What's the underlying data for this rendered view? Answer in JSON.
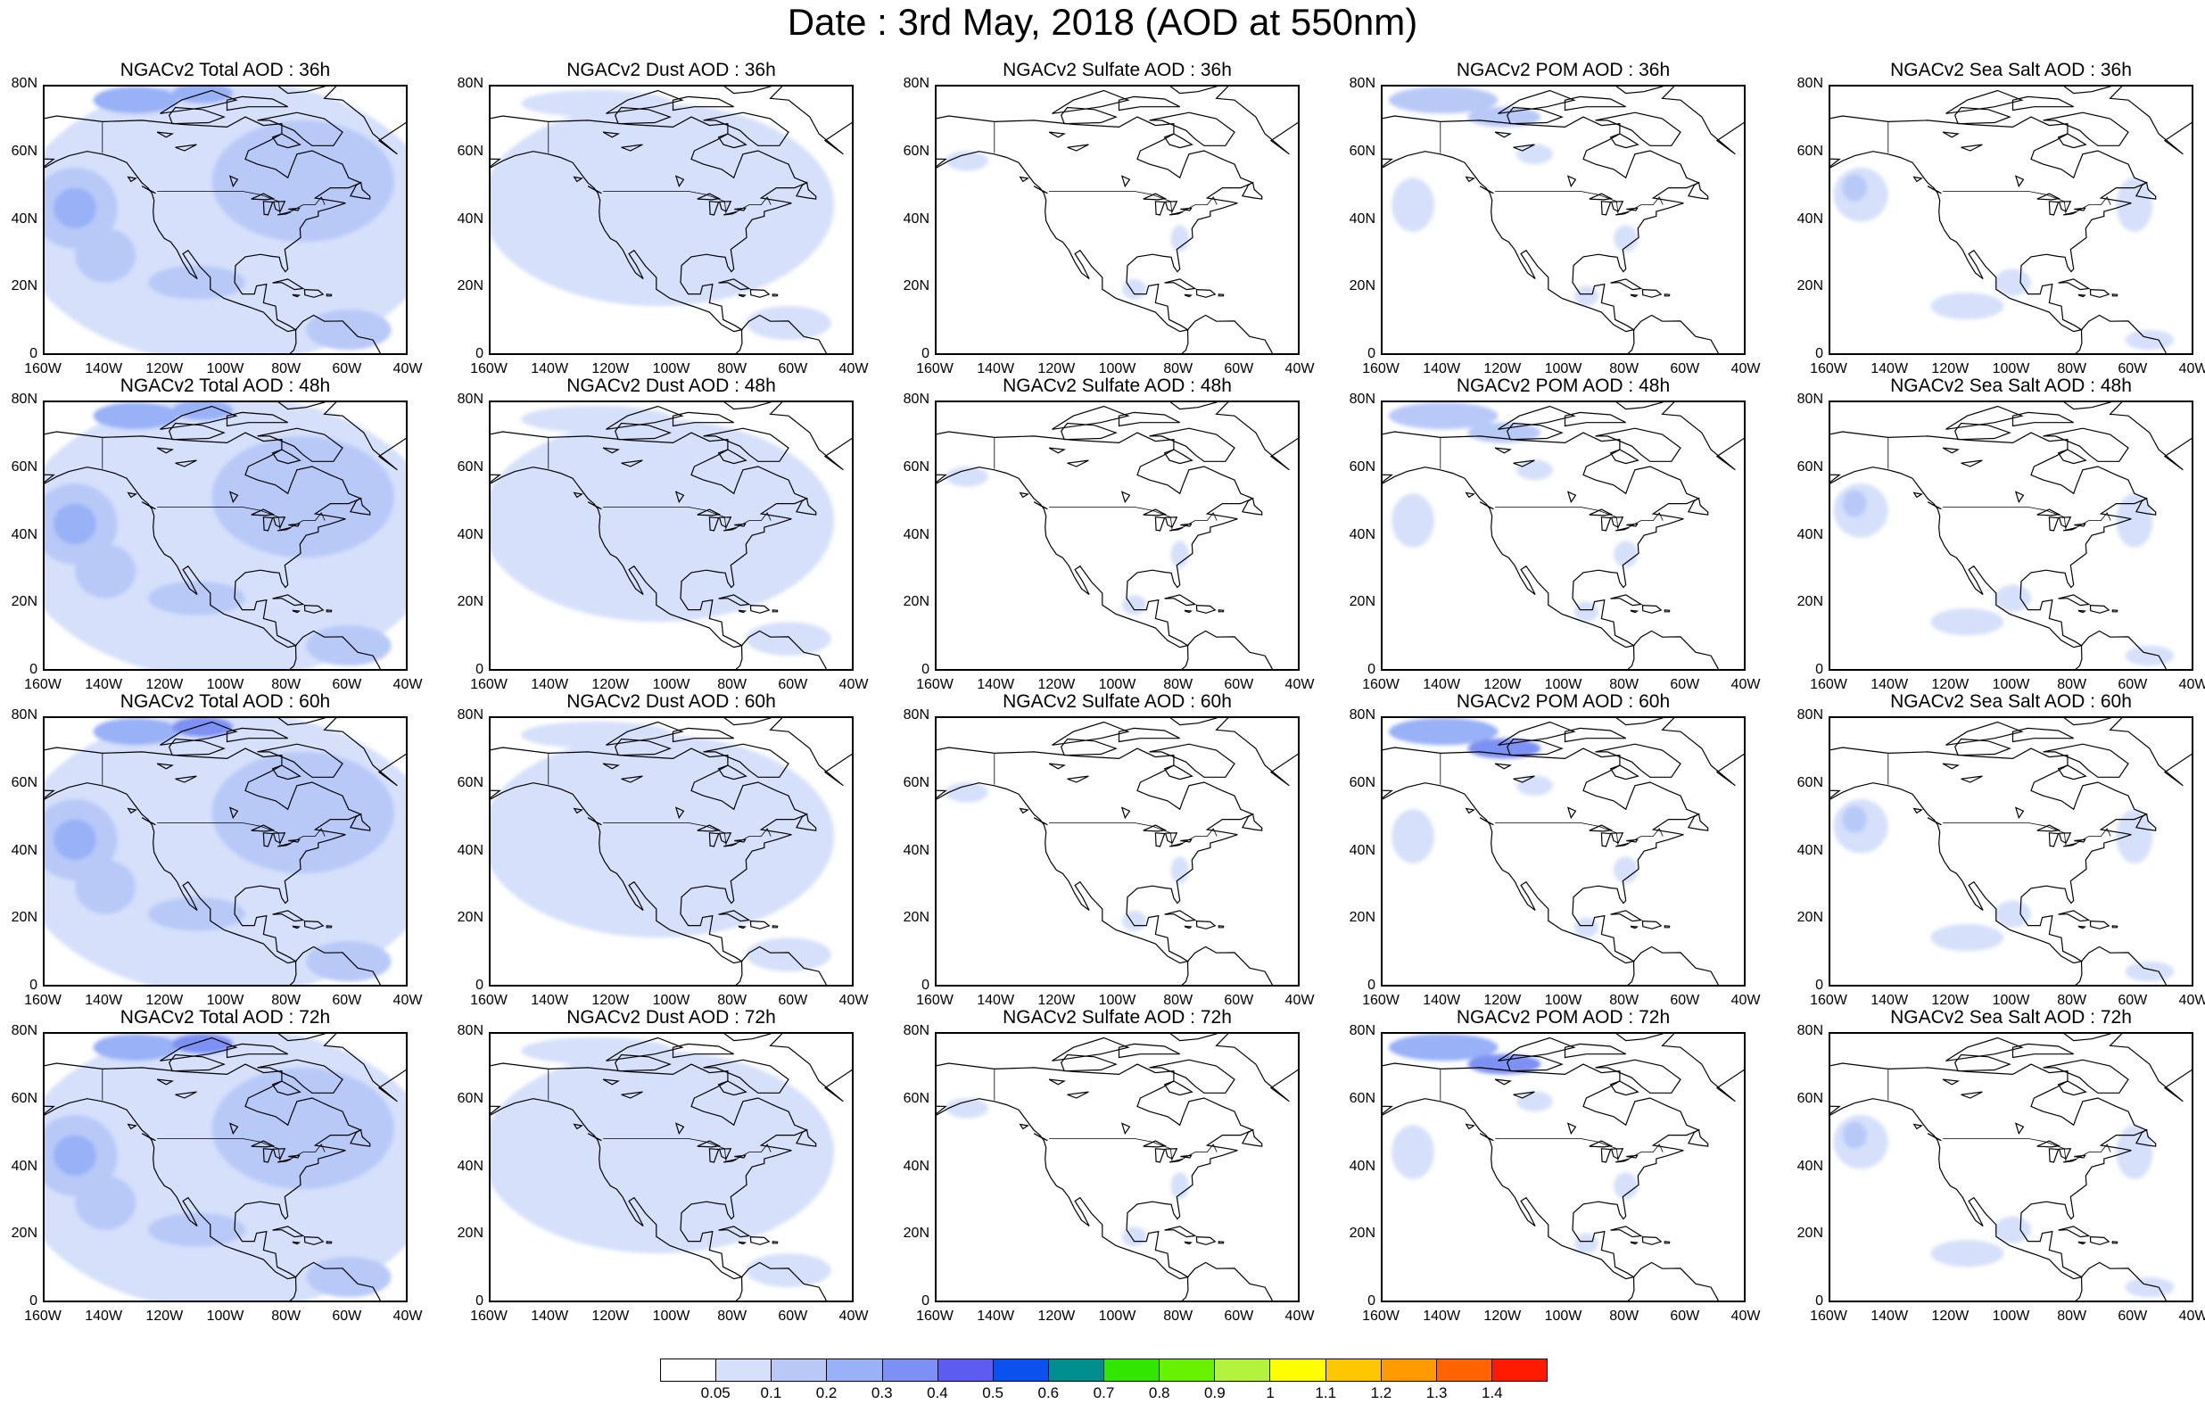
{
  "title": "Date : 3rd May, 2018 (AOD at 550nm)",
  "axes": {
    "lat_ticks": [
      "80N",
      "60N",
      "40N",
      "20N",
      "0"
    ],
    "lon_ticks": [
      "160W",
      "140W",
      "120W",
      "100W",
      "80W",
      "60W",
      "40W"
    ],
    "lon_range": [
      -160,
      -40
    ],
    "lat_range": [
      0,
      80
    ]
  },
  "panels": [
    [
      {
        "title": "NGACv2 Total AOD : 36h",
        "field": "total",
        "lead": 36
      },
      {
        "title": "NGACv2 Dust AOD : 36h",
        "field": "dust",
        "lead": 36
      },
      {
        "title": "NGACv2 Sulfate AOD : 36h",
        "field": "sulfate",
        "lead": 36
      },
      {
        "title": "NGACv2 POM AOD : 36h",
        "field": "pom",
        "lead": 36
      },
      {
        "title": "NGACv2 Sea Salt AOD : 36h",
        "field": "seasalt",
        "lead": 36
      }
    ],
    [
      {
        "title": "NGACv2 Total AOD : 48h",
        "field": "total",
        "lead": 48
      },
      {
        "title": "NGACv2 Dust AOD : 48h",
        "field": "dust",
        "lead": 48
      },
      {
        "title": "NGACv2 Sulfate AOD : 48h",
        "field": "sulfate",
        "lead": 48
      },
      {
        "title": "NGACv2 POM AOD : 48h",
        "field": "pom",
        "lead": 48
      },
      {
        "title": "NGACv2 Sea Salt AOD : 48h",
        "field": "seasalt",
        "lead": 48
      }
    ],
    [
      {
        "title": "NGACv2 Total AOD : 60h",
        "field": "total",
        "lead": 60
      },
      {
        "title": "NGACv2 Dust AOD : 60h",
        "field": "dust",
        "lead": 60
      },
      {
        "title": "NGACv2 Sulfate AOD : 60h",
        "field": "sulfate",
        "lead": 60
      },
      {
        "title": "NGACv2 POM AOD : 60h",
        "field": "pom",
        "lead": 60
      },
      {
        "title": "NGACv2 Sea Salt AOD : 60h",
        "field": "seasalt",
        "lead": 60
      }
    ],
    [
      {
        "title": "NGACv2 Total AOD : 72h",
        "field": "total",
        "lead": 72
      },
      {
        "title": "NGACv2 Dust AOD : 72h",
        "field": "dust",
        "lead": 72
      },
      {
        "title": "NGACv2 Sulfate AOD : 72h",
        "field": "sulfate",
        "lead": 72
      },
      {
        "title": "NGACv2 POM AOD : 72h",
        "field": "pom",
        "lead": 72
      },
      {
        "title": "NGACv2 Sea Salt  AOD : 72h",
        "field": "seasalt",
        "lead": 72
      }
    ]
  ],
  "colorbar": {
    "labels": [
      "0.05",
      "0.1",
      "0.2",
      "0.3",
      "0.4",
      "0.5",
      "0.6",
      "0.7",
      "0.8",
      "0.9",
      "1",
      "1.1",
      "1.2",
      "1.3",
      "1.4"
    ],
    "colors": [
      "#ffffff",
      "#d6e0fb",
      "#b8c9f8",
      "#98b1f7",
      "#7d90f3",
      "#5c5cf0",
      "#0a52f0",
      "#008f8c",
      "#33e600",
      "#66f200",
      "#b3f23d",
      "#ffff00",
      "#ffc700",
      "#ff9a00",
      "#ff6400",
      "#ff1a00"
    ]
  }
}
